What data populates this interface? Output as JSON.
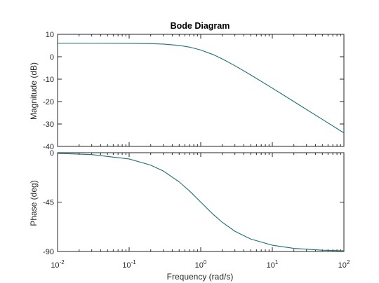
{
  "chart_data": [
    {
      "type": "line",
      "panel": "magnitude",
      "title": "Bode Diagram",
      "ylabel": "Magnitude (dB)",
      "xlabel": "",
      "xscale": "log",
      "xlim": [
        0.01,
        100
      ],
      "ylim": [
        -40,
        10
      ],
      "yticks": [
        10,
        0,
        -10,
        -20,
        -30,
        -40
      ],
      "ytick_labels": [
        "10",
        "0",
        "-10",
        "-20",
        "-30",
        "-40"
      ],
      "grid": false,
      "line_color": "#1f6f73",
      "x": [
        0.01,
        0.03,
        0.1,
        0.2,
        0.3,
        0.5,
        0.7,
        1,
        1.5,
        2,
        3,
        5,
        10,
        20,
        50,
        100
      ],
      "y": [
        6.02,
        6.02,
        5.98,
        5.85,
        5.66,
        5.05,
        4.29,
        3.01,
        0.92,
        -0.97,
        -4.0,
        -8.13,
        -14.0,
        -20.0,
        -27.96,
        -33.98
      ]
    },
    {
      "type": "line",
      "panel": "phase",
      "ylabel": "Phase (deg)",
      "xlabel": "Frequency  (rad/s)",
      "xscale": "log",
      "xlim": [
        0.01,
        100
      ],
      "ylim": [
        -90,
        0
      ],
      "yticks": [
        0,
        -45,
        -90
      ],
      "ytick_labels": [
        "0",
        "-45",
        "-90"
      ],
      "xticks": [
        0.01,
        0.1,
        1,
        10,
        100
      ],
      "xtick_bases": [
        "10",
        "10",
        "10",
        "10",
        "10"
      ],
      "xtick_exponents": [
        "-2",
        "-1",
        "0",
        "1",
        "2"
      ],
      "grid": false,
      "line_color": "#1f6f73",
      "x": [
        0.01,
        0.03,
        0.1,
        0.2,
        0.3,
        0.5,
        0.7,
        1,
        1.5,
        2,
        3,
        5,
        10,
        20,
        50,
        100
      ],
      "y": [
        -0.57,
        -1.72,
        -5.71,
        -11.31,
        -16.7,
        -26.57,
        -34.99,
        -45.0,
        -56.31,
        -63.43,
        -71.57,
        -78.69,
        -84.29,
        -87.14,
        -88.85,
        -89.43
      ]
    }
  ]
}
